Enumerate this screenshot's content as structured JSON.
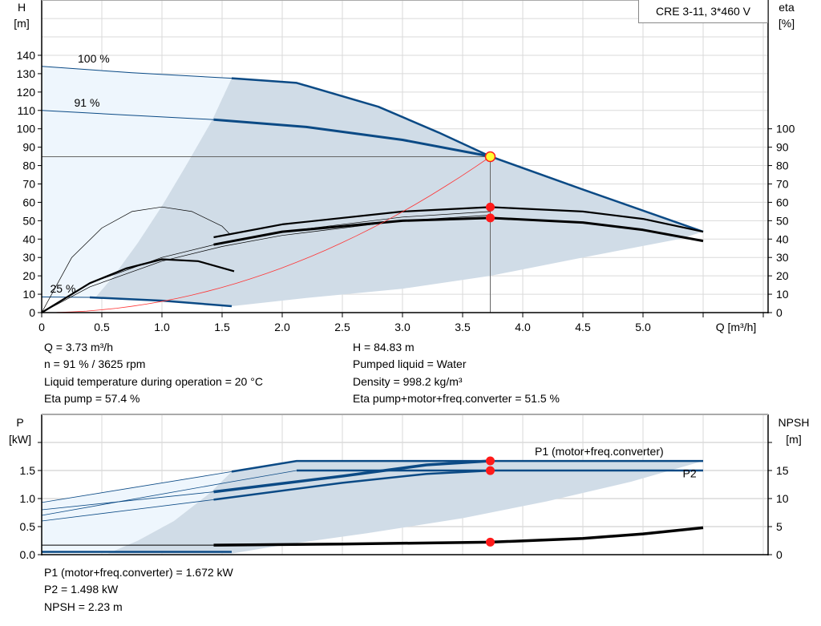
{
  "title_box": "CRE 3-11, 3*460 V",
  "info_top": {
    "left": [
      "Q = 3.73 m³/h",
      "n = 91 % / 3625 rpm",
      "Liquid temperature during operation = 20 °C",
      "Eta pump = 57.4 %"
    ],
    "right": [
      "H = 84.83 m",
      "Pumped liquid = Water",
      "Density = 998.2 kg/m³",
      "Eta pump+motor+freq.converter = 51.5 %"
    ]
  },
  "info_bottom": [
    "P1 (motor+freq.converter) = 1.672 kW",
    "P2 = 1.498 kW",
    "NPSH = 2.23 m"
  ],
  "colors": {
    "curve": "#0b4a85",
    "shade_dark": "#d0dce7",
    "shade_light": "#eef6fd",
    "grid": "#dadada",
    "system": "#ff3333",
    "point": "#ff1a1a",
    "op_point": "#ffff33"
  },
  "chart_data": [
    {
      "type": "line",
      "xlabel": "Q [m³/h]",
      "ylabel_left": "H",
      "ylabel_left_unit": "[m]",
      "ylabel_right": "eta",
      "ylabel_right_unit": "[%]",
      "xlim": [
        0,
        6
      ],
      "ylim": [
        0,
        160
      ],
      "xticks": [
        "0",
        "0.5",
        "1.0",
        "1.5",
        "2.0",
        "2.5",
        "3.0",
        "3.5",
        "4.0",
        "4.5",
        "5.0"
      ],
      "xtick_values": [
        0,
        0.5,
        1,
        1.5,
        2,
        2.5,
        3,
        3.5,
        4,
        4.5,
        5
      ],
      "yticks_left": [
        "0",
        "10",
        "20",
        "30",
        "40",
        "50",
        "60",
        "70",
        "80",
        "90",
        "100",
        "110",
        "120",
        "130",
        "140"
      ],
      "yticks_right": [
        "0",
        "10",
        "20",
        "30",
        "40",
        "50",
        "60",
        "70",
        "80",
        "90",
        "100"
      ],
      "grid": true,
      "speed_labels": [
        {
          "text": "100 %",
          "q": 0.3,
          "h": 136
        },
        {
          "text": "91 %",
          "q": 0.27,
          "h": 112
        },
        {
          "text": "25 %",
          "q": 0.07,
          "h": 11
        }
      ],
      "series": [
        {
          "id": "h100-thin",
          "points": [
            [
              0,
              134
            ],
            [
              0.75,
              130.5
            ],
            [
              1.58,
              127.5
            ]
          ]
        },
        {
          "id": "h100",
          "points": [
            [
              1.58,
              127.5
            ],
            [
              2.12,
              125
            ],
            [
              2.8,
              112
            ],
            [
              3.3,
              98
            ],
            [
              3.73,
              85
            ],
            [
              4.5,
              67
            ],
            [
              5.5,
              44
            ]
          ]
        },
        {
          "id": "h91-thin",
          "points": [
            [
              0,
              110
            ],
            [
              0.7,
              107.5
            ],
            [
              1.43,
              105
            ]
          ]
        },
        {
          "id": "h91",
          "points": [
            [
              1.43,
              105
            ],
            [
              2.2,
              101
            ],
            [
              3.0,
              94
            ],
            [
              3.73,
              85
            ]
          ]
        },
        {
          "id": "h25-thin",
          "points": [
            [
              0,
              8.5
            ],
            [
              0.4,
              8.3
            ]
          ]
        },
        {
          "id": "h25",
          "points": [
            [
              0.4,
              8.3
            ],
            [
              1.0,
              6.5
            ],
            [
              1.58,
              3.5
            ]
          ]
        },
        {
          "id": "eta-pump",
          "points": [
            [
              1.43,
              41
            ],
            [
              2.0,
              48
            ],
            [
              3.0,
              55
            ],
            [
              3.73,
              57.4
            ],
            [
              4.5,
              55
            ],
            [
              5.0,
              51
            ],
            [
              5.5,
              44
            ]
          ]
        },
        {
          "id": "eta-total",
          "points": [
            [
              1.43,
              37
            ],
            [
              2.0,
              44
            ],
            [
              3.0,
              50
            ],
            [
              3.73,
              51.5
            ],
            [
              4.5,
              49
            ],
            [
              5.0,
              45
            ],
            [
              5.5,
              39
            ]
          ]
        },
        {
          "id": "eta-25",
          "points": [
            [
              0,
              0
            ],
            [
              0.4,
              16
            ],
            [
              0.7,
              24
            ],
            [
              1.0,
              29
            ],
            [
              1.3,
              28
            ],
            [
              1.6,
              22.5
            ]
          ]
        },
        {
          "id": "eta-thin-arc",
          "points": [
            [
              0,
              0
            ],
            [
              0.25,
              30
            ],
            [
              0.5,
              46
            ],
            [
              0.75,
              55
            ],
            [
              1.0,
              57.5
            ],
            [
              1.25,
              55
            ],
            [
              1.5,
              47
            ],
            [
              1.56,
              43
            ]
          ]
        },
        {
          "id": "eta-thin-1",
          "points": [
            [
              0,
              0
            ],
            [
              0.4,
              16
            ],
            [
              1.0,
              30
            ],
            [
              1.5,
              38
            ],
            [
              2.0,
              44
            ],
            [
              3.0,
              52
            ],
            [
              3.73,
              55
            ]
          ]
        },
        {
          "id": "eta-thin-2",
          "points": [
            [
              0,
              0
            ],
            [
              0.4,
              14
            ],
            [
              1.0,
              28
            ],
            [
              1.5,
              36
            ],
            [
              2.0,
              42
            ],
            [
              3.0,
              50
            ],
            [
              3.73,
              53
            ]
          ]
        },
        {
          "id": "system-curve",
          "q_max": 3.73,
          "h_at_qmax": 84.83
        }
      ],
      "operating_point": {
        "q": 3.73,
        "h": 84.83,
        "eta_pump": 57.4,
        "eta_total": 51.5
      },
      "regions": {
        "light": [
          [
            0,
            134
          ],
          [
            1.58,
            127.5
          ],
          [
            1.42,
            105
          ],
          [
            1.2,
            80
          ],
          [
            1.0,
            58
          ],
          [
            0.8,
            38
          ],
          [
            0.6,
            20
          ],
          [
            0.45,
            8.5
          ],
          [
            0,
            8.5
          ]
        ],
        "dark": [
          [
            1.58,
            127.5
          ],
          [
            2.12,
            125
          ],
          [
            2.8,
            112
          ],
          [
            3.3,
            98
          ],
          [
            3.73,
            85
          ],
          [
            4.5,
            67
          ],
          [
            5.5,
            44
          ],
          [
            5.3,
            40
          ],
          [
            4.5,
            30
          ],
          [
            3.73,
            20
          ],
          [
            3.0,
            13
          ],
          [
            2.2,
            8
          ],
          [
            1.58,
            3.5
          ],
          [
            1.0,
            6.5
          ],
          [
            0.45,
            8.5
          ],
          [
            0.6,
            20
          ],
          [
            0.8,
            38
          ],
          [
            1.0,
            58
          ],
          [
            1.2,
            80
          ],
          [
            1.42,
            105
          ]
        ]
      }
    },
    {
      "type": "line",
      "ylabel_left": "P",
      "ylabel_left_unit": "[kW]",
      "ylabel_right": "NPSH",
      "ylabel_right_unit": "[m]",
      "xlim": [
        0,
        6
      ],
      "ylim": [
        0,
        2.5
      ],
      "yticks_left": [
        "0.0",
        "0.5",
        "1.0",
        "1.5"
      ],
      "yticks_right": [
        "0",
        "5",
        "10",
        "15"
      ],
      "series_labels": [
        {
          "text": "P1 (motor+freq.converter)",
          "q": 4.1,
          "p": 1.77
        },
        {
          "text": "P2",
          "q": 5.33,
          "p": 1.38
        }
      ],
      "series": [
        {
          "id": "p1-100-thin",
          "points": [
            [
              0,
              0.93
            ],
            [
              1.58,
              1.48
            ]
          ]
        },
        {
          "id": "p1-100",
          "points": [
            [
              1.58,
              1.48
            ],
            [
              2.12,
              1.67
            ],
            [
              5.5,
              1.67
            ]
          ]
        },
        {
          "id": "p2-100-thin",
          "points": [
            [
              0,
              0.7
            ],
            [
              1.58,
              1.3
            ],
            [
              2.12,
              1.5
            ]
          ]
        },
        {
          "id": "p2-100",
          "points": [
            [
              2.12,
              1.5
            ],
            [
              5.5,
              1.5
            ]
          ]
        },
        {
          "id": "p1-91-thin",
          "points": [
            [
              0,
              0.8
            ],
            [
              1.43,
              1.12
            ]
          ]
        },
        {
          "id": "p1-91",
          "points": [
            [
              1.43,
              1.12
            ],
            [
              2.5,
              1.4
            ],
            [
              3.2,
              1.6
            ],
            [
              3.73,
              1.672
            ]
          ]
        },
        {
          "id": "p2-91-thin",
          "points": [
            [
              0,
              0.6
            ],
            [
              1.43,
              0.98
            ]
          ]
        },
        {
          "id": "p2-91",
          "points": [
            [
              1.43,
              0.98
            ],
            [
              2.5,
              1.28
            ],
            [
              3.2,
              1.44
            ],
            [
              3.73,
              1.498
            ]
          ]
        },
        {
          "id": "p-25",
          "points": [
            [
              0,
              0.05
            ],
            [
              1.58,
              0.05
            ]
          ]
        },
        {
          "id": "npsh",
          "unit": "m",
          "points": [
            [
              1.43,
              1.7
            ],
            [
              2.5,
              1.9
            ],
            [
              3.73,
              2.23
            ],
            [
              4.5,
              2.9
            ],
            [
              5.0,
              3.7
            ],
            [
              5.5,
              4.8
            ]
          ]
        },
        {
          "id": "npsh-thin",
          "unit": "m",
          "points": [
            [
              0,
              1.7
            ],
            [
              1.43,
              1.7
            ]
          ]
        }
      ],
      "operating_point": {
        "q": 3.73,
        "p1": 1.672,
        "p2": 1.498,
        "npsh": 2.23
      },
      "regions": {
        "light": [
          [
            0,
            0.93
          ],
          [
            1.58,
            1.48
          ],
          [
            1.4,
            1.1
          ],
          [
            1.1,
            0.6
          ],
          [
            0.8,
            0.25
          ],
          [
            0.55,
            0.02
          ],
          [
            0,
            0.02
          ]
        ],
        "dark": [
          [
            1.58,
            1.48
          ],
          [
            2.12,
            1.67
          ],
          [
            5.5,
            1.67
          ],
          [
            4.9,
            1.3
          ],
          [
            4.2,
            0.95
          ],
          [
            3.5,
            0.65
          ],
          [
            2.7,
            0.38
          ],
          [
            2.0,
            0.17
          ],
          [
            1.58,
            0.02
          ],
          [
            0.55,
            0.02
          ],
          [
            0.8,
            0.25
          ],
          [
            1.1,
            0.6
          ],
          [
            1.4,
            1.1
          ]
        ]
      }
    }
  ]
}
